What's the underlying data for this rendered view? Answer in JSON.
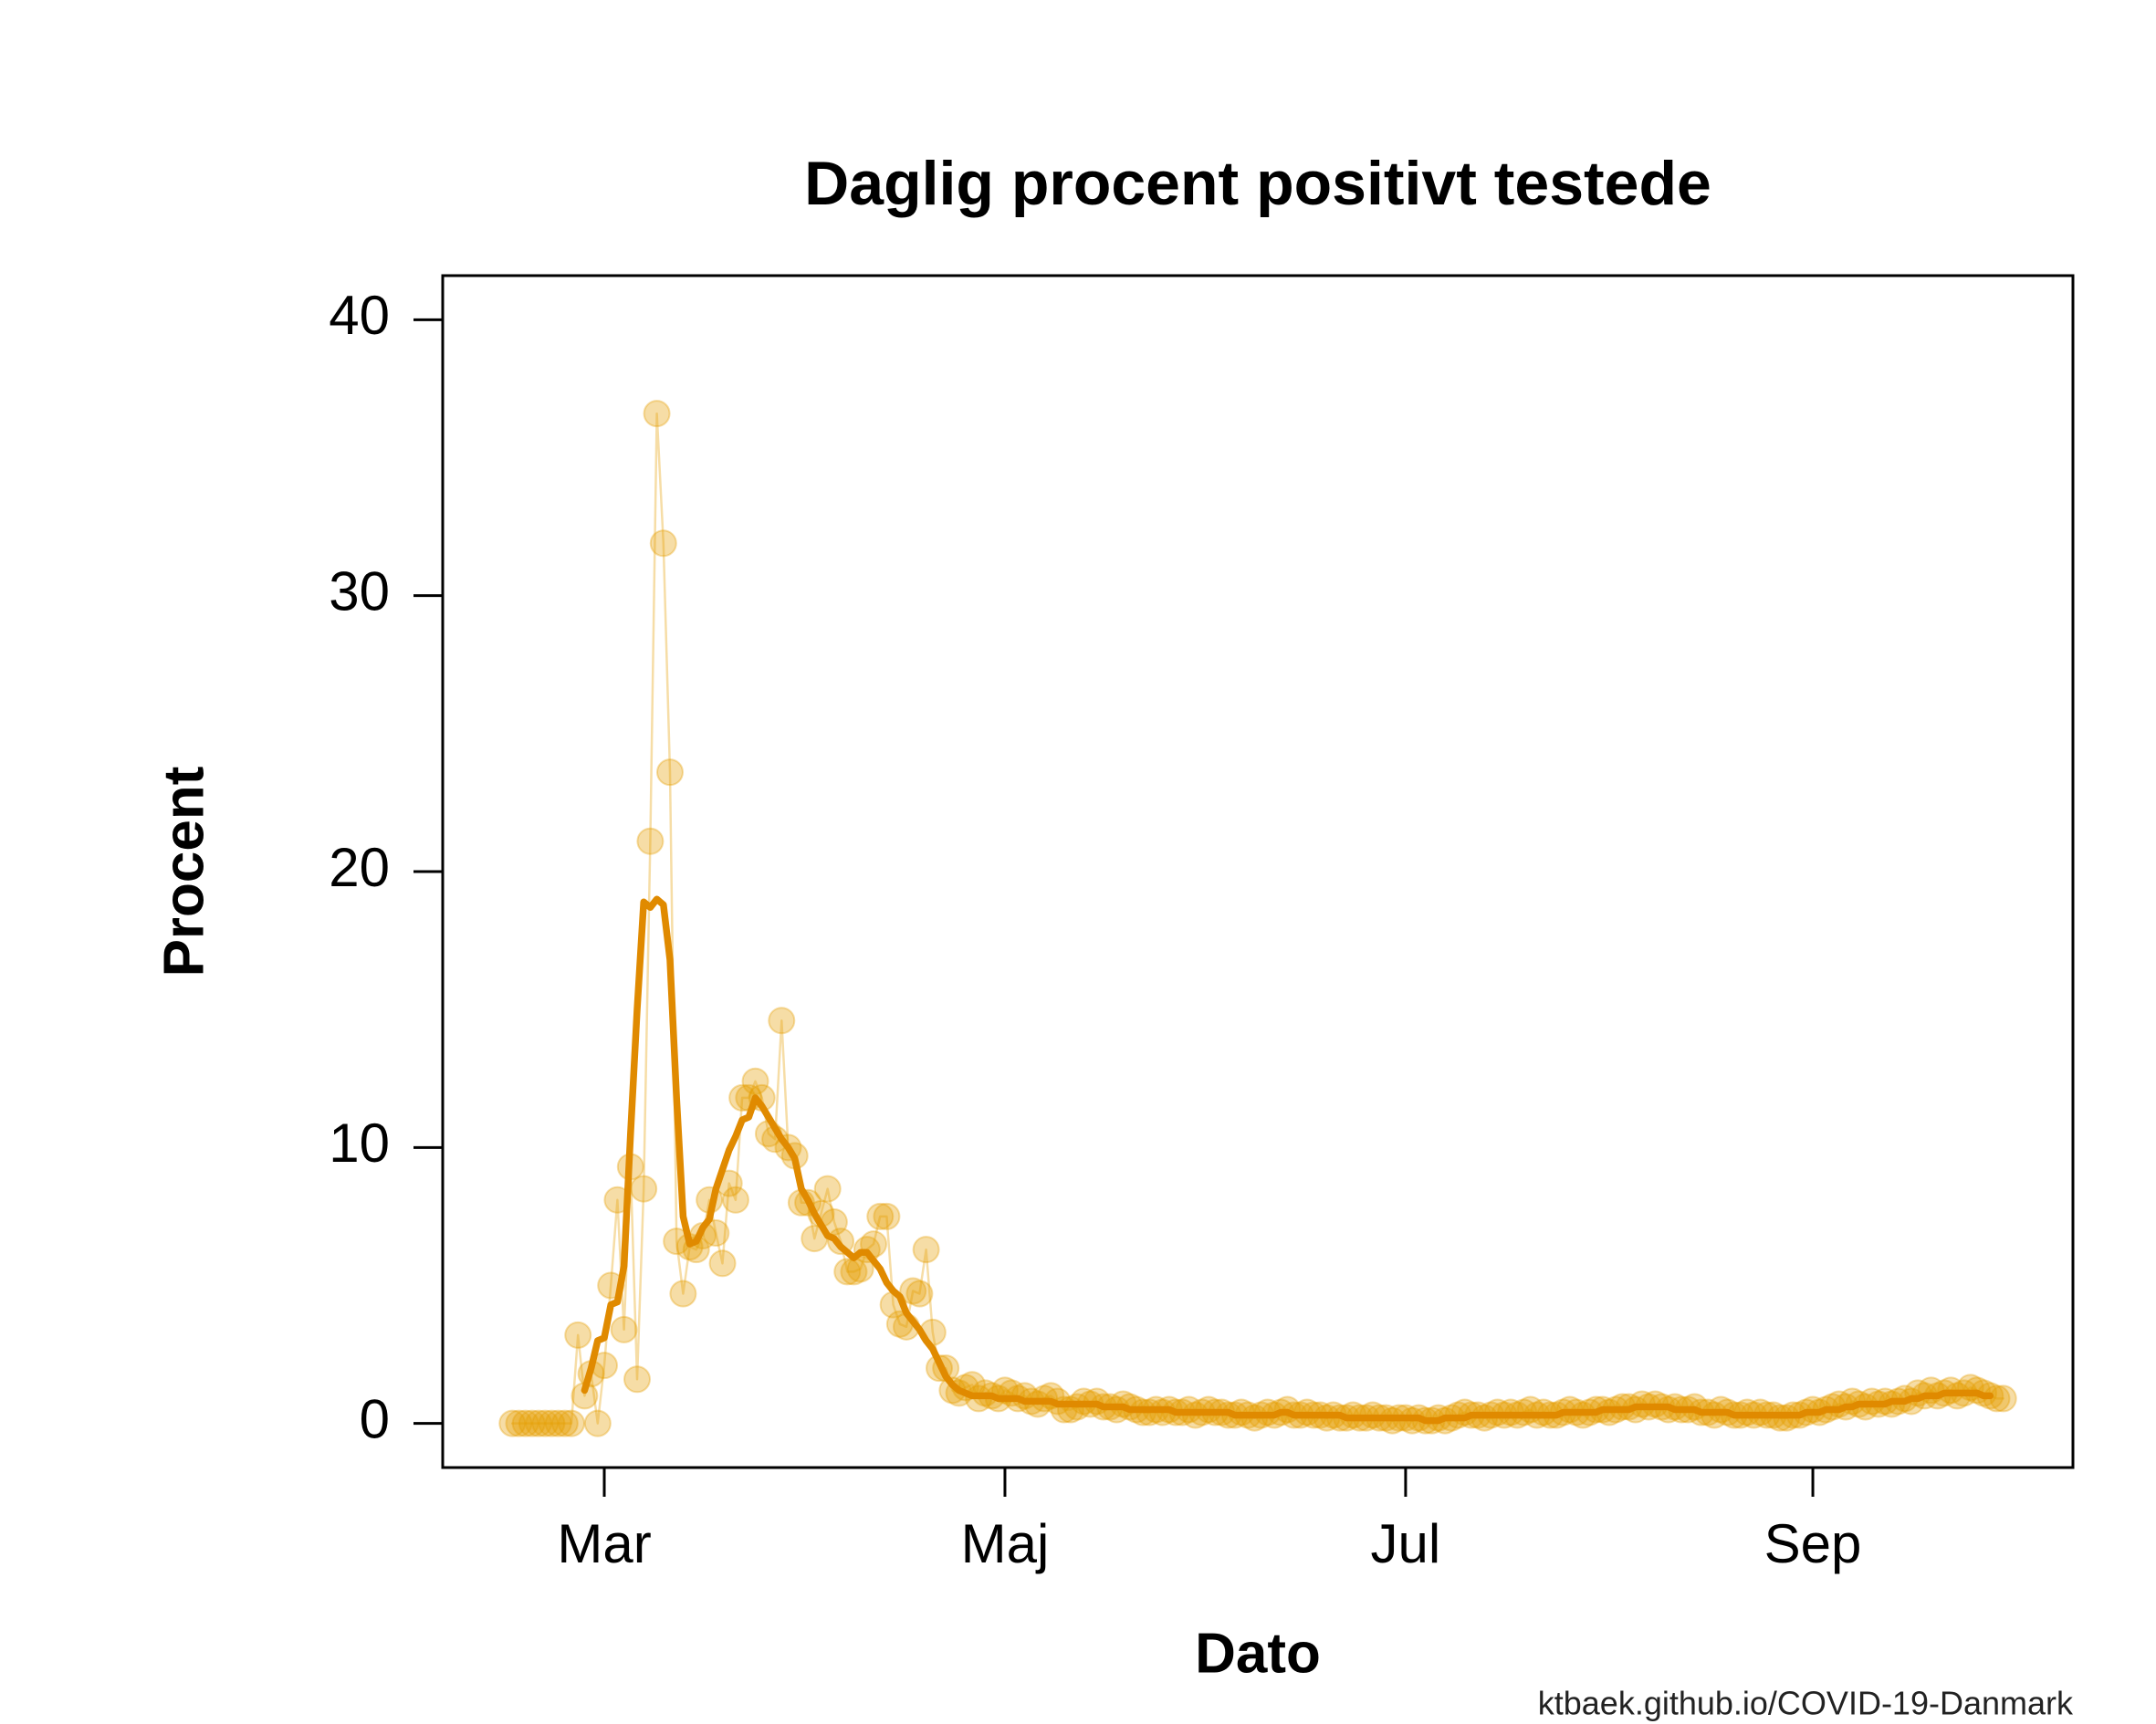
{
  "chart_data": {
    "type": "line",
    "title": "Daglig procent positivt testede",
    "xlabel": "Dato",
    "ylabel": "Procent",
    "source": "ktbaek.github.io/COVID-19-Danmark",
    "categories": [
      null,
      null,
      null,
      null,
      null,
      null,
      null,
      null,
      null,
      null,
      null,
      null,
      null,
      null,
      "Mar",
      null,
      null,
      null,
      null,
      null,
      null,
      null,
      null,
      null,
      null,
      null,
      null,
      null,
      null,
      null,
      null,
      null,
      null,
      null,
      null,
      null,
      null,
      null,
      null,
      null,
      null,
      null,
      null,
      null,
      null,
      null,
      null,
      null,
      null,
      null,
      null,
      null,
      null,
      null,
      null,
      null,
      null,
      null,
      null,
      null,
      null,
      null,
      null,
      null,
      null,
      null,
      null,
      null,
      null,
      null,
      null,
      null,
      null,
      null,
      null,
      "Maj",
      null,
      null,
      null,
      null,
      null,
      null,
      null,
      null,
      null,
      null,
      null,
      null,
      null,
      null,
      null,
      null,
      null,
      null,
      null,
      null,
      null,
      null,
      null,
      null,
      null,
      null,
      null,
      null,
      null,
      null,
      null,
      null,
      null,
      null,
      null,
      null,
      null,
      null,
      null,
      null,
      null,
      null,
      null,
      null,
      null,
      null,
      null,
      null,
      null,
      null,
      null,
      null,
      null,
      null,
      null,
      null,
      null,
      null,
      null,
      null,
      "Jul",
      null,
      null,
      null,
      null,
      null,
      null,
      null,
      null,
      null,
      null,
      null,
      null,
      null,
      null,
      null,
      null,
      null,
      null,
      null,
      null,
      null,
      null,
      null,
      null,
      null,
      null,
      null,
      null,
      null,
      null,
      null,
      null,
      null,
      null,
      null,
      null,
      null,
      null,
      null,
      null,
      null,
      null,
      null,
      null,
      null,
      null,
      null,
      null,
      null,
      null,
      null,
      null,
      null,
      null,
      null,
      null,
      null,
      null,
      null,
      null,
      null,
      "Sep",
      null,
      null,
      null,
      null,
      null,
      null,
      null,
      null,
      null,
      null,
      null,
      null,
      null,
      null,
      null,
      null,
      null,
      null,
      null,
      null,
      null,
      null,
      null,
      null,
      null,
      null,
      null,
      null,
      null
    ],
    "series": [
      {
        "color": "#e69f00",
        "alpha": 0.35,
        "marker": "circle",
        "values": [
          0,
          0,
          0,
          0,
          0,
          0,
          0,
          0,
          0,
          0,
          3.2,
          1.0,
          1.8,
          0.0,
          2.1,
          5.0,
          8.1,
          3.4,
          9.3,
          1.6,
          8.5,
          21.1,
          36.6,
          31.9,
          23.6,
          6.6,
          4.7,
          6.4,
          6.3,
          6.8,
          8.1,
          6.9,
          5.8,
          8.7,
          8.1,
          11.8,
          11.8,
          12.4,
          11.8,
          10.5,
          10.3,
          14.6,
          10.0,
          9.7,
          8.0,
          8.0,
          6.7,
          7.6,
          8.5,
          7.3,
          6.6,
          5.5,
          5.5,
          5.6,
          6.3,
          6.5,
          7.5,
          7.5,
          4.3,
          3.6,
          3.5,
          4.8,
          4.7,
          6.3,
          3.3,
          2.0,
          2.0,
          1.2,
          1.1,
          1.3,
          1.4,
          0.9,
          1.1,
          1.0,
          0.9,
          1.2,
          1.1,
          0.9,
          1.0,
          0.8,
          0.7,
          0.9,
          1.0,
          0.8,
          0.5,
          0.5,
          0.6,
          0.8,
          0.7,
          0.8,
          0.6,
          0.6,
          0.5,
          0.7,
          0.6,
          0.5,
          0.4,
          0.4,
          0.5,
          0.4,
          0.5,
          0.4,
          0.4,
          0.5,
          0.3,
          0.4,
          0.5,
          0.4,
          0.4,
          0.3,
          0.3,
          0.4,
          0.3,
          0.2,
          0.3,
          0.4,
          0.3,
          0.4,
          0.5,
          0.3,
          0.3,
          0.4,
          0.3,
          0.3,
          0.2,
          0.3,
          0.2,
          0.2,
          0.3,
          0.2,
          0.2,
          0.3,
          0.2,
          0.2,
          0.1,
          0.2,
          0.2,
          0.1,
          0.2,
          0.1,
          0.1,
          0.2,
          0.1,
          0.2,
          0.3,
          0.4,
          0.3,
          0.3,
          0.2,
          0.3,
          0.4,
          0.3,
          0.4,
          0.3,
          0.4,
          0.5,
          0.3,
          0.4,
          0.3,
          0.3,
          0.4,
          0.5,
          0.4,
          0.3,
          0.4,
          0.5,
          0.5,
          0.4,
          0.5,
          0.6,
          0.6,
          0.5,
          0.7,
          0.6,
          0.7,
          0.6,
          0.5,
          0.6,
          0.5,
          0.5,
          0.6,
          0.4,
          0.4,
          0.3,
          0.5,
          0.4,
          0.3,
          0.3,
          0.4,
          0.3,
          0.4,
          0.3,
          0.3,
          0.2,
          0.2,
          0.3,
          0.3,
          0.4,
          0.5,
          0.4,
          0.5,
          0.6,
          0.7,
          0.6,
          0.8,
          0.7,
          0.6,
          0.8,
          0.7,
          0.8,
          0.7,
          0.8,
          0.9,
          0.8,
          1.1,
          1.0,
          1.2,
          1.0,
          1.1,
          1.2,
          1.0,
          1.1,
          1.3,
          1.2,
          1.1,
          1.0,
          0.9,
          0.9
        ]
      },
      {
        "color": "#e08a00",
        "alpha": 1,
        "marker": "none",
        "values": [
          null,
          null,
          null,
          null,
          null,
          null,
          null,
          null,
          null,
          null,
          null,
          1.2,
          2.0,
          3.0,
          3.1,
          4.3,
          4.4,
          5.7,
          10.5,
          15.0,
          18.9,
          18.7,
          19.0,
          18.8,
          16.8,
          11.8,
          7.5,
          6.5,
          6.6,
          7.1,
          7.4,
          8.5,
          9.2,
          9.9,
          10.4,
          11.0,
          11.1,
          11.8,
          11.5,
          11.1,
          10.7,
          10.3,
          10.0,
          9.6,
          8.5,
          8.1,
          7.6,
          7.2,
          6.8,
          6.7,
          6.4,
          6.2,
          6.0,
          6.2,
          6.2,
          5.9,
          5.6,
          5.1,
          4.8,
          4.6,
          4.0,
          3.7,
          3.4,
          3.0,
          2.7,
          2.2,
          1.7,
          1.4,
          1.2,
          1.1,
          1.0,
          1.0,
          1.0,
          1.0,
          0.9,
          0.9,
          0.9,
          0.9,
          0.8,
          0.8,
          0.8,
          0.8,
          0.8,
          0.7,
          0.7,
          0.7,
          0.7,
          0.7,
          0.7,
          0.7,
          0.6,
          0.6,
          0.6,
          0.6,
          0.5,
          0.5,
          0.5,
          0.5,
          0.5,
          0.5,
          0.5,
          0.4,
          0.4,
          0.4,
          0.4,
          0.4,
          0.4,
          0.4,
          0.4,
          0.4,
          0.3,
          0.3,
          0.3,
          0.3,
          0.3,
          0.3,
          0.3,
          0.4,
          0.4,
          0.3,
          0.3,
          0.3,
          0.3,
          0.3,
          0.3,
          0.3,
          0.3,
          0.2,
          0.2,
          0.2,
          0.2,
          0.2,
          0.2,
          0.2,
          0.2,
          0.2,
          0.2,
          0.2,
          0.2,
          0.1,
          0.1,
          0.1,
          0.2,
          0.2,
          0.2,
          0.2,
          0.3,
          0.3,
          0.3,
          0.3,
          0.3,
          0.3,
          0.3,
          0.3,
          0.3,
          0.3,
          0.3,
          0.3,
          0.3,
          0.3,
          0.4,
          0.4,
          0.4,
          0.4,
          0.4,
          0.4,
          0.5,
          0.5,
          0.5,
          0.5,
          0.5,
          0.6,
          0.6,
          0.6,
          0.6,
          0.6,
          0.6,
          0.5,
          0.5,
          0.5,
          0.5,
          0.4,
          0.4,
          0.4,
          0.4,
          0.4,
          0.3,
          0.3,
          0.3,
          0.3,
          0.3,
          0.3,
          0.3,
          0.3,
          0.3,
          0.3,
          0.3,
          0.4,
          0.4,
          0.4,
          0.5,
          0.5,
          0.5,
          0.6,
          0.6,
          0.7,
          0.7,
          0.7,
          0.7,
          0.7,
          0.8,
          0.8,
          0.8,
          0.9,
          0.9,
          1.0,
          1.0,
          1.0,
          1.1,
          1.1,
          1.1,
          1.1,
          1.1,
          1.1,
          1.0,
          1.0,
          null,
          null
        ]
      }
    ],
    "ylim": [
      -1.6,
      41.6
    ],
    "yticks": [
      0,
      10,
      20,
      30,
      40
    ],
    "grid": false
  }
}
